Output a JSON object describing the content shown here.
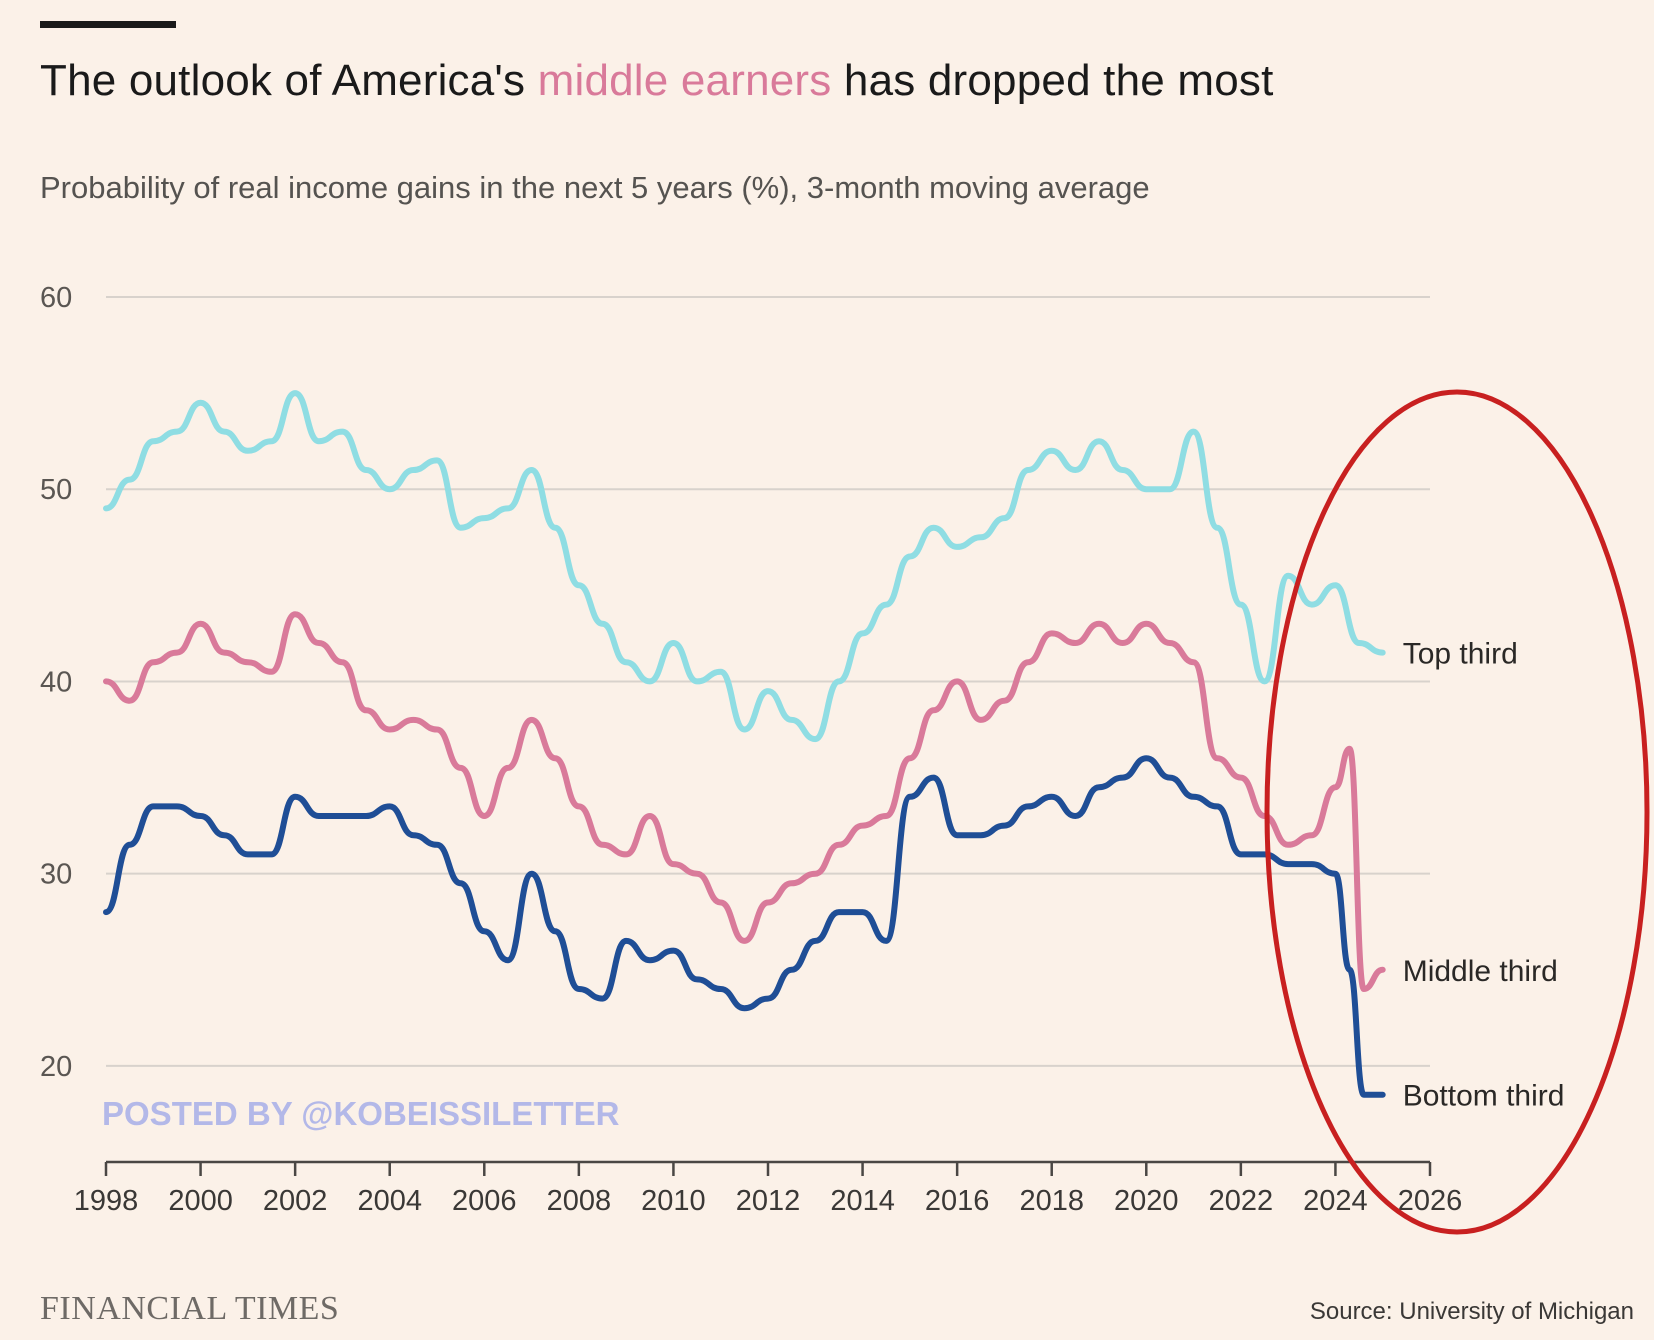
{
  "header": {
    "title_pre": "The outlook of America's ",
    "title_highlight": "middle earners",
    "title_post": " has dropped the most",
    "subtitle": "Probability of real income gains in the next 5 years (%), 3-month moving average"
  },
  "watermark": "POSTED BY @KOBEISSILETTER",
  "footer": {
    "brand": "FINANCIAL TIMES",
    "source": "Source: University of Michigan"
  },
  "colors": {
    "top": "#8fdde3",
    "middle": "#d97a9a",
    "bottom": "#1f4e96",
    "grid": "#d8d2cc",
    "annotation": "#c82020",
    "watermark": "#b3b8e8"
  },
  "chart_data": {
    "type": "line",
    "title": "The outlook of America's middle earners has dropped the most",
    "subtitle": "Probability of real income gains in the next 5 years (%), 3-month moving average",
    "xlim": [
      1998,
      2026
    ],
    "ylim": [
      15,
      60
    ],
    "x_ticks": [
      "1998",
      "2000",
      "2002",
      "2004",
      "2006",
      "2008",
      "2010",
      "2012",
      "2014",
      "2016",
      "2018",
      "2020",
      "2022",
      "2024",
      "2026"
    ],
    "y_ticks": [
      "20",
      "30",
      "40",
      "50",
      "60"
    ],
    "grid": true,
    "annotation": "red ellipse highlighting 2022–2026",
    "series": [
      {
        "name": "Top third",
        "x": [
          1998.0,
          1998.5,
          1999.0,
          1999.5,
          2000.0,
          2000.5,
          2001.0,
          2001.5,
          2002.0,
          2002.5,
          2003.0,
          2003.5,
          2004.0,
          2004.5,
          2005.0,
          2005.5,
          2006.0,
          2006.5,
          2007.0,
          2007.5,
          2008.0,
          2008.5,
          2009.0,
          2009.5,
          2010.0,
          2010.5,
          2011.0,
          2011.5,
          2012.0,
          2012.5,
          2013.0,
          2013.5,
          2014.0,
          2014.5,
          2015.0,
          2015.5,
          2016.0,
          2016.5,
          2017.0,
          2017.5,
          2018.0,
          2018.5,
          2019.0,
          2019.5,
          2020.0,
          2020.5,
          2021.0,
          2021.5,
          2022.0,
          2022.5,
          2023.0,
          2023.5,
          2024.0,
          2024.5,
          2025.0
        ],
        "values": [
          49,
          50.5,
          52.5,
          53,
          54.5,
          53,
          52,
          52.5,
          55,
          52.5,
          53,
          51,
          50,
          51,
          51.5,
          48,
          48.5,
          49,
          51,
          48,
          45,
          43,
          41,
          40,
          42,
          40,
          40.5,
          37.5,
          39.5,
          38,
          37,
          40,
          42.5,
          44,
          46.5,
          48,
          47,
          47.5,
          48.5,
          51,
          52,
          51,
          52.5,
          51,
          50,
          50,
          53,
          48,
          44,
          40,
          45.5,
          44,
          45,
          42,
          41.5
        ]
      },
      {
        "name": "Middle third",
        "x": [
          1998.0,
          1998.5,
          1999.0,
          1999.5,
          2000.0,
          2000.5,
          2001.0,
          2001.5,
          2002.0,
          2002.5,
          2003.0,
          2003.5,
          2004.0,
          2004.5,
          2005.0,
          2005.5,
          2006.0,
          2006.5,
          2007.0,
          2007.5,
          2008.0,
          2008.5,
          2009.0,
          2009.5,
          2010.0,
          2010.5,
          2011.0,
          2011.5,
          2012.0,
          2012.5,
          2013.0,
          2013.5,
          2014.0,
          2014.5,
          2015.0,
          2015.5,
          2016.0,
          2016.5,
          2017.0,
          2017.5,
          2018.0,
          2018.5,
          2019.0,
          2019.5,
          2020.0,
          2020.5,
          2021.0,
          2021.5,
          2022.0,
          2022.5,
          2023.0,
          2023.5,
          2024.0,
          2024.3,
          2024.6,
          2025.0
        ],
        "values": [
          40,
          39,
          41,
          41.5,
          43,
          41.5,
          41,
          40.5,
          43.5,
          42,
          41,
          38.5,
          37.5,
          38,
          37.5,
          35.5,
          33,
          35.5,
          38,
          36,
          33.5,
          31.5,
          31,
          33,
          30.5,
          30,
          28.5,
          26.5,
          28.5,
          29.5,
          30,
          31.5,
          32.5,
          33,
          36,
          38.5,
          40,
          38,
          39,
          41,
          42.5,
          42,
          43,
          42,
          43,
          42,
          41,
          36,
          35,
          33,
          31.5,
          32,
          34.5,
          36.5,
          24,
          25
        ]
      },
      {
        "name": "Bottom third",
        "x": [
          1998.0,
          1998.5,
          1999.0,
          1999.5,
          2000.0,
          2000.5,
          2001.0,
          2001.5,
          2002.0,
          2002.5,
          2003.0,
          2003.5,
          2004.0,
          2004.5,
          2005.0,
          2005.5,
          2006.0,
          2006.5,
          2007.0,
          2007.5,
          2008.0,
          2008.5,
          2009.0,
          2009.5,
          2010.0,
          2010.5,
          2011.0,
          2011.5,
          2012.0,
          2012.5,
          2013.0,
          2013.5,
          2014.0,
          2014.5,
          2015.0,
          2015.5,
          2016.0,
          2016.5,
          2017.0,
          2017.5,
          2018.0,
          2018.5,
          2019.0,
          2019.5,
          2020.0,
          2020.5,
          2021.0,
          2021.5,
          2022.0,
          2022.5,
          2023.0,
          2023.5,
          2024.0,
          2024.3,
          2024.6,
          2025.0
        ],
        "values": [
          28,
          31.5,
          33.5,
          33.5,
          33,
          32,
          31,
          31,
          34,
          33,
          33,
          33,
          33.5,
          32,
          31.5,
          29.5,
          27,
          25.5,
          30,
          27,
          24,
          23.5,
          26.5,
          25.5,
          26,
          24.5,
          24,
          23,
          23.5,
          25,
          26.5,
          28,
          28,
          26.5,
          34,
          35,
          32,
          32,
          32.5,
          33.5,
          34,
          33,
          34.5,
          35,
          36,
          35,
          34,
          33.5,
          31,
          31,
          30.5,
          30.5,
          30,
          25,
          18.5,
          18.5
        ]
      }
    ]
  }
}
